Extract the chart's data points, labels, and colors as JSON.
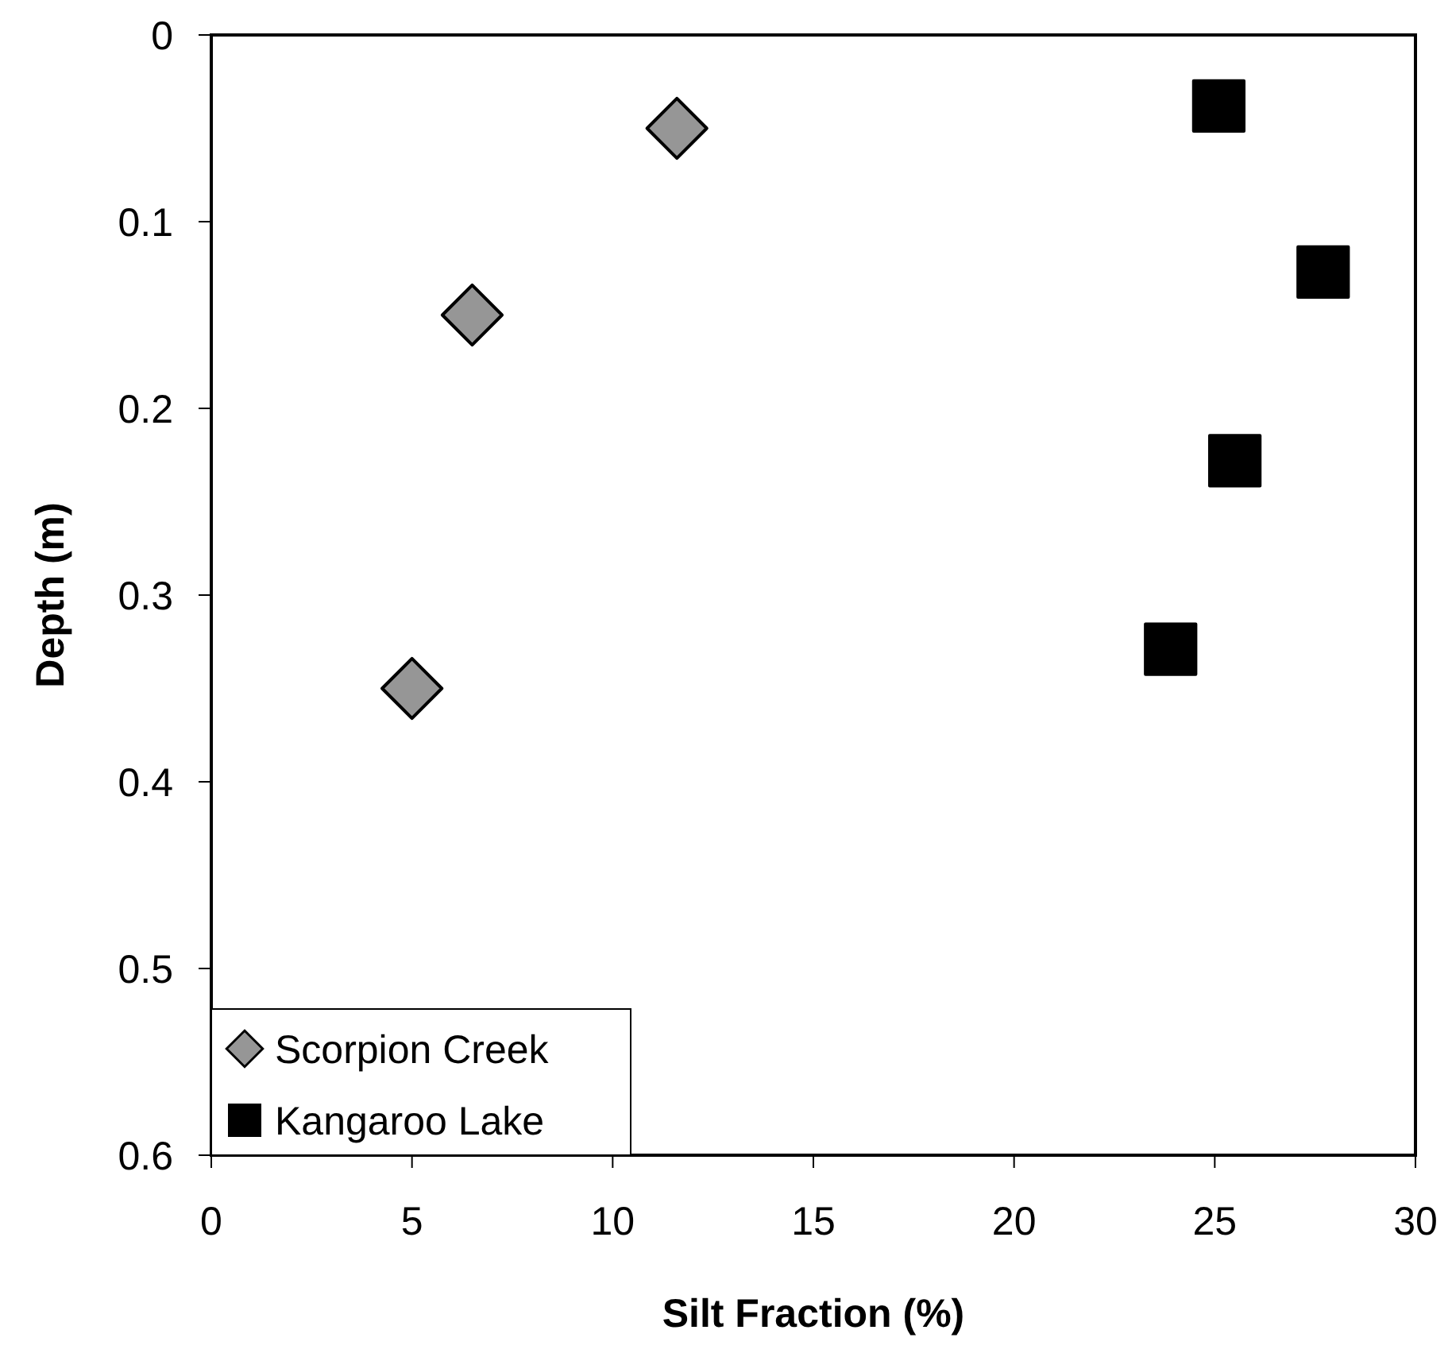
{
  "chart_data": {
    "type": "scatter",
    "xlabel": "Silt Fraction (%)",
    "ylabel": "Depth (m)",
    "xlim": [
      0,
      30
    ],
    "xticks": [
      0,
      5,
      10,
      15,
      20,
      25,
      30
    ],
    "ylim": [
      0.6,
      0
    ],
    "yticks": [
      0,
      0.1,
      0.2,
      0.3,
      0.4,
      0.5,
      0.6
    ],
    "legend": "bottom left",
    "series": [
      {
        "name": "Scorpion Creek",
        "color": "#969696",
        "marker": "diamond",
        "x": [
          11.6,
          6.5,
          5.0
        ],
        "values": [
          0.05,
          0.15,
          0.35
        ]
      },
      {
        "name": "Kangaroo Lake",
        "color": "#000000",
        "marker": "square",
        "x": [
          25.1,
          27.7,
          25.5,
          23.9
        ],
        "values": [
          0.038,
          0.127,
          0.228,
          0.329
        ]
      }
    ]
  }
}
